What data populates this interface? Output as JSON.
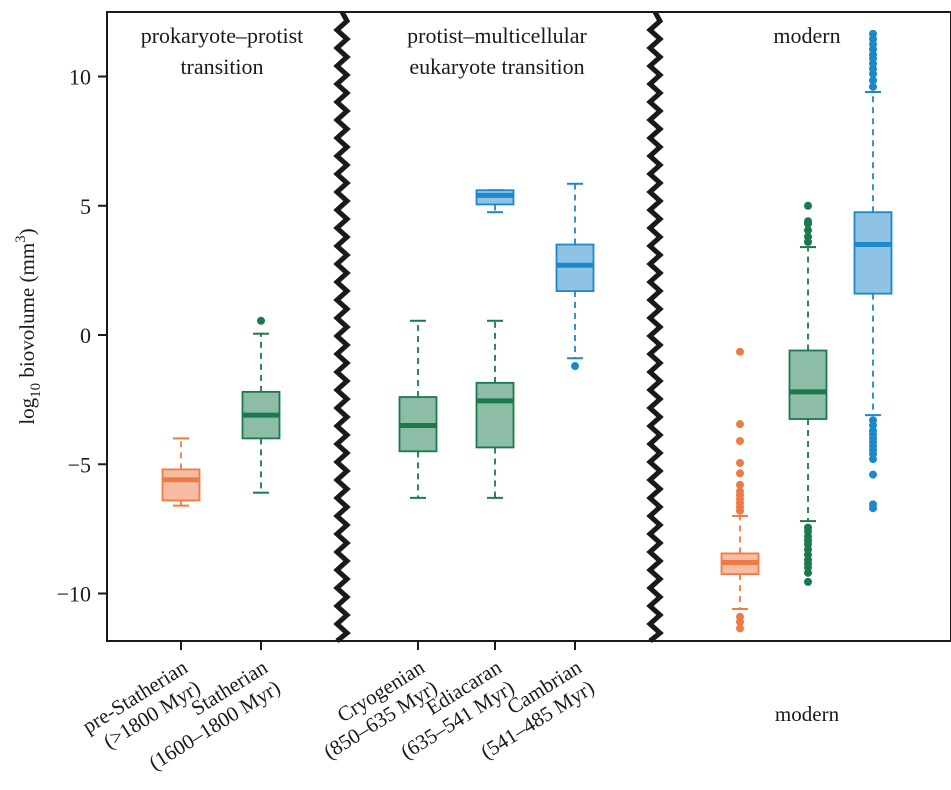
{
  "chart_data": {
    "type": "box",
    "ylabel": {
      "main": "log",
      "sub": "10",
      "rest": " biovolume (mm",
      "sup": "3",
      "end": ")"
    },
    "ylim": [
      -12,
      12.2
    ],
    "yticks": [
      -10,
      -5,
      0,
      5,
      10
    ],
    "ytick_labels": [
      "−10",
      "−5",
      "0",
      "5",
      "10"
    ],
    "grid": false,
    "colors": {
      "prokaryote": "#ef7a44",
      "protist": "#1a7a4c",
      "multicellular": "#1e87c7",
      "divider": "#1a1a1a"
    },
    "panels": [
      {
        "title_lines": [
          "prokaryote–protist",
          "transition"
        ]
      },
      {
        "title_lines": [
          "protist–multicellular",
          "eukaryote transition"
        ]
      },
      {
        "title_lines": [
          "modern"
        ]
      }
    ],
    "categories": [
      {
        "lines": [
          "pre-Statherian",
          "(>1800 Myr)"
        ]
      },
      {
        "lines": [
          "Statherian",
          "(1600–1800 Myr)"
        ]
      },
      {
        "lines": [
          "Cryogenian",
          "(850–635 Myr)"
        ]
      },
      {
        "lines": [
          "Ediacaran",
          "(635–541 Myr)"
        ]
      },
      {
        "lines": [
          "Cambrian",
          "(541–485 Myr)"
        ]
      }
    ],
    "modern_label": "modern",
    "boxes": [
      {
        "category": 0,
        "group": "prokaryote",
        "whisker_low": -6.6,
        "q1": -6.4,
        "median": -5.6,
        "q3": -5.2,
        "whisker_high": -4.0,
        "outliers": []
      },
      {
        "category": 1,
        "group": "protist",
        "whisker_low": -6.1,
        "q1": -4.0,
        "median": -3.1,
        "q3": -2.2,
        "whisker_high": 0.05,
        "outliers": [
          0.55
        ]
      },
      {
        "category": 2,
        "group": "protist",
        "whisker_low": -6.3,
        "q1": -4.5,
        "median": -3.5,
        "q3": -2.4,
        "whisker_high": 0.55,
        "outliers": []
      },
      {
        "category": 3,
        "group": "protist",
        "whisker_low": -6.3,
        "q1": -4.35,
        "median": -2.55,
        "q3": -1.85,
        "whisker_high": 0.55,
        "outliers": []
      },
      {
        "category": 3,
        "group": "multicellular",
        "whisker_low": 4.75,
        "q1": 5.05,
        "median": 5.4,
        "q3": 5.6,
        "whisker_high": 5.6,
        "outliers": []
      },
      {
        "category": 4,
        "group": "multicellular",
        "whisker_low": -0.9,
        "q1": 1.7,
        "median": 2.7,
        "q3": 3.5,
        "whisker_high": 5.85,
        "outliers": [
          -1.2
        ]
      },
      {
        "category": "modern",
        "group": "prokaryote",
        "whisker_low": -10.6,
        "q1": -9.25,
        "median": -8.8,
        "q3": -8.45,
        "whisker_high": -7.0,
        "outliers": [
          -0.65,
          -3.45,
          -4.1,
          -4.95,
          -5.35,
          -5.8,
          -6.05,
          -6.2,
          -6.35,
          -6.5,
          -6.65,
          -6.8,
          -10.9,
          -11.1,
          -11.35
        ]
      },
      {
        "category": "modern",
        "group": "protist",
        "whisker_low": -7.2,
        "q1": -3.25,
        "median": -2.2,
        "q3": -0.6,
        "whisker_high": 3.4,
        "outliers": [
          3.6,
          3.8,
          4.05,
          4.3,
          4.4,
          5.0,
          -7.45,
          -7.6,
          -7.8,
          -7.95,
          -8.1,
          -8.3,
          -8.5,
          -8.7,
          -8.85,
          -9.0,
          -9.2,
          -9.55
        ]
      },
      {
        "category": "modern",
        "group": "multicellular",
        "whisker_low": -3.1,
        "q1": 1.6,
        "median": 3.5,
        "q3": 4.75,
        "whisker_high": 9.4,
        "outliers": [
          9.6,
          9.85,
          10.1,
          10.3,
          10.5,
          10.7,
          10.85,
          11.05,
          11.25,
          11.45,
          11.65,
          -3.3,
          -3.5,
          -3.7,
          -3.85,
          -4.0,
          -4.15,
          -4.3,
          -4.45,
          -4.6,
          -4.8,
          -5.4,
          -6.55,
          -6.7
        ]
      }
    ]
  }
}
